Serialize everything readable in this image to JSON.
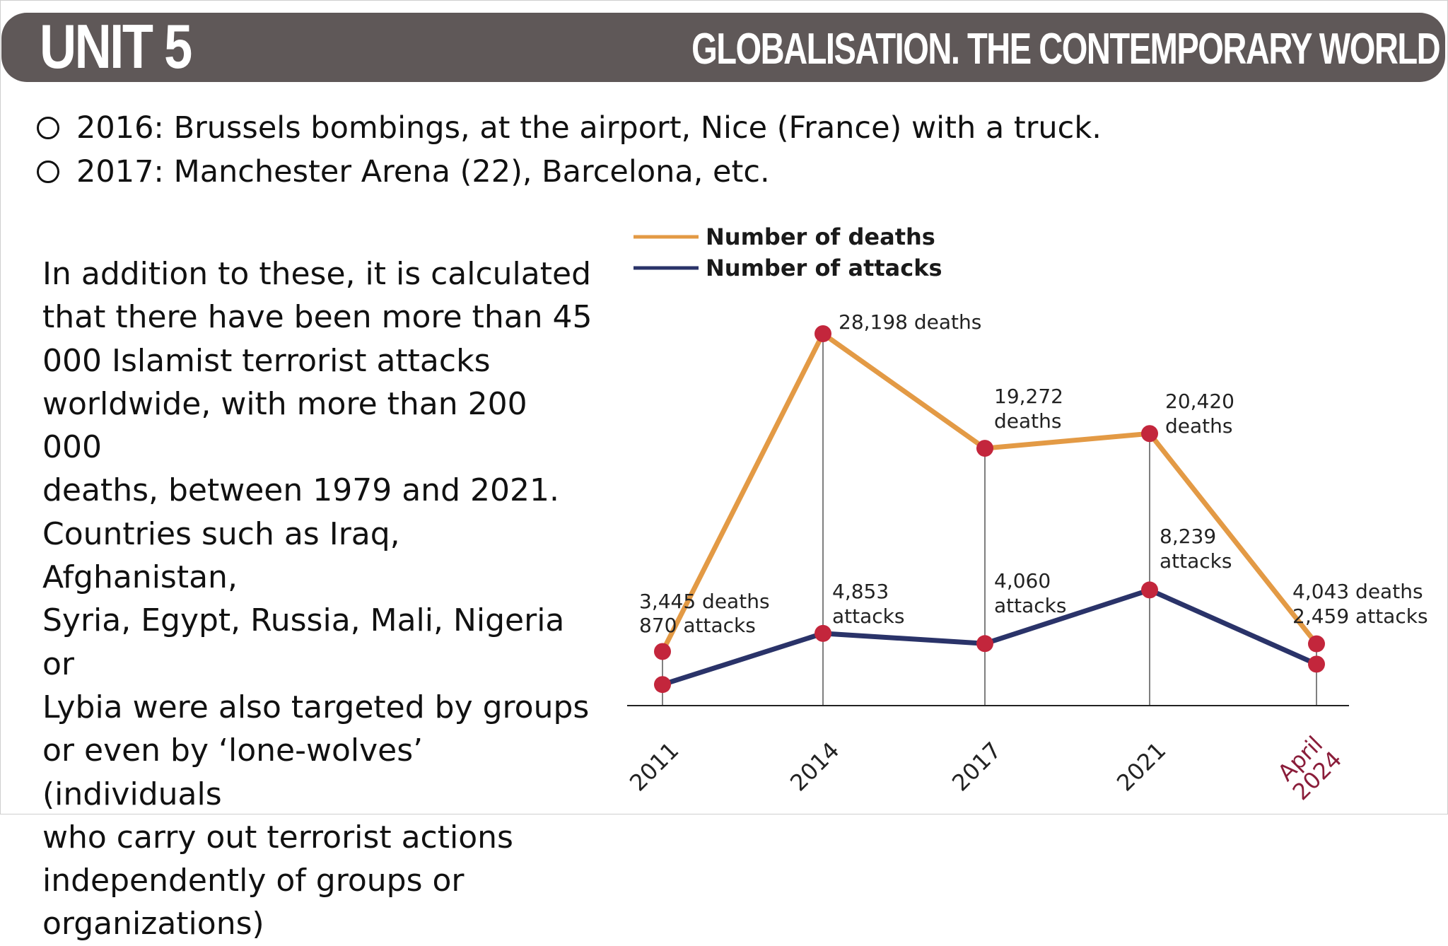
{
  "header": {
    "unit": "UNIT 5",
    "topic": "GLOBALISATION. THE CONTEMPORARY WORLD"
  },
  "bullets": [
    "2016: Brussels bombings, at the airport, Nice (France) with a truck.",
    "2017: Manchester Arena (22), Barcelona, etc."
  ],
  "paragraph_lines": [
    "In addition to these, it is calculated",
    "that there have been more than 45",
    "000 Islamist terrorist attacks",
    "worldwide, with more than 200 000",
    "deaths, between 1979 and 2021.",
    "Countries such as Iraq, Afghanistan,",
    "Syria, Egypt, Russia, Mali, Nigeria or",
    "Lybia were also targeted by groups",
    "or even by ‘lone-wolves’ (individuals",
    "who carry out terrorist actions",
    "independently of groups or",
    "organizations)"
  ],
  "colors": {
    "header_bg": "#5f5858",
    "deaths_line": "#e39a45",
    "attacks_line": "#2a3369",
    "marker": "#c3263c",
    "highlight_tick": "#8a1d3a"
  },
  "chart_data": {
    "type": "line",
    "categories": [
      "2011",
      "2014",
      "2017",
      "2021",
      "April 2024"
    ],
    "highlight_category": 4,
    "series": [
      {
        "name": "Number of deaths",
        "values": [
          3445,
          28198,
          19272,
          20420,
          4043
        ]
      },
      {
        "name": "Number of attacks",
        "values": [
          870,
          4853,
          4060,
          8239,
          2459
        ]
      }
    ],
    "data_labels": [
      [
        "3,445 deaths",
        "870 attacks"
      ],
      [
        "28,198 deaths"
      ],
      [
        "19,272",
        "deaths"
      ],
      [
        "20,420",
        "deaths"
      ],
      [
        "4,853",
        "attacks"
      ],
      [
        "4,060",
        "attacks"
      ],
      [
        "8,239",
        "attacks"
      ],
      [
        "4,043 deaths",
        "2,459 attacks"
      ]
    ],
    "legend_position": "top-left",
    "grid": false
  }
}
